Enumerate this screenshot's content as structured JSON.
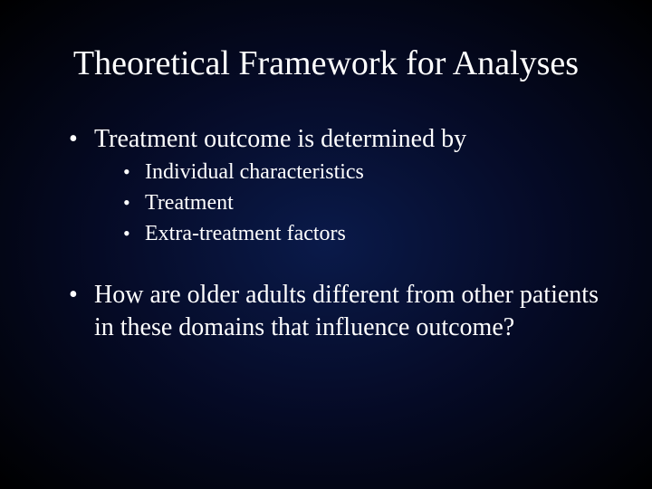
{
  "slide": {
    "title": "Theoretical Framework for Analyses",
    "title_fontsize": 38,
    "background_gradient": [
      "#0a1a4a",
      "#050a25",
      "#000000"
    ],
    "text_color": "#ffffff",
    "font_family": "Times New Roman",
    "bullets_level1": [
      {
        "text": "Treatment outcome is determined by",
        "children": [
          "Individual characteristics",
          "Treatment",
          "Extra-treatment factors"
        ]
      },
      {
        "text": "How are older adults different from other patients in these domains that influence outcome?",
        "children": []
      }
    ],
    "level1_fontsize": 28,
    "level2_fontsize": 24
  }
}
